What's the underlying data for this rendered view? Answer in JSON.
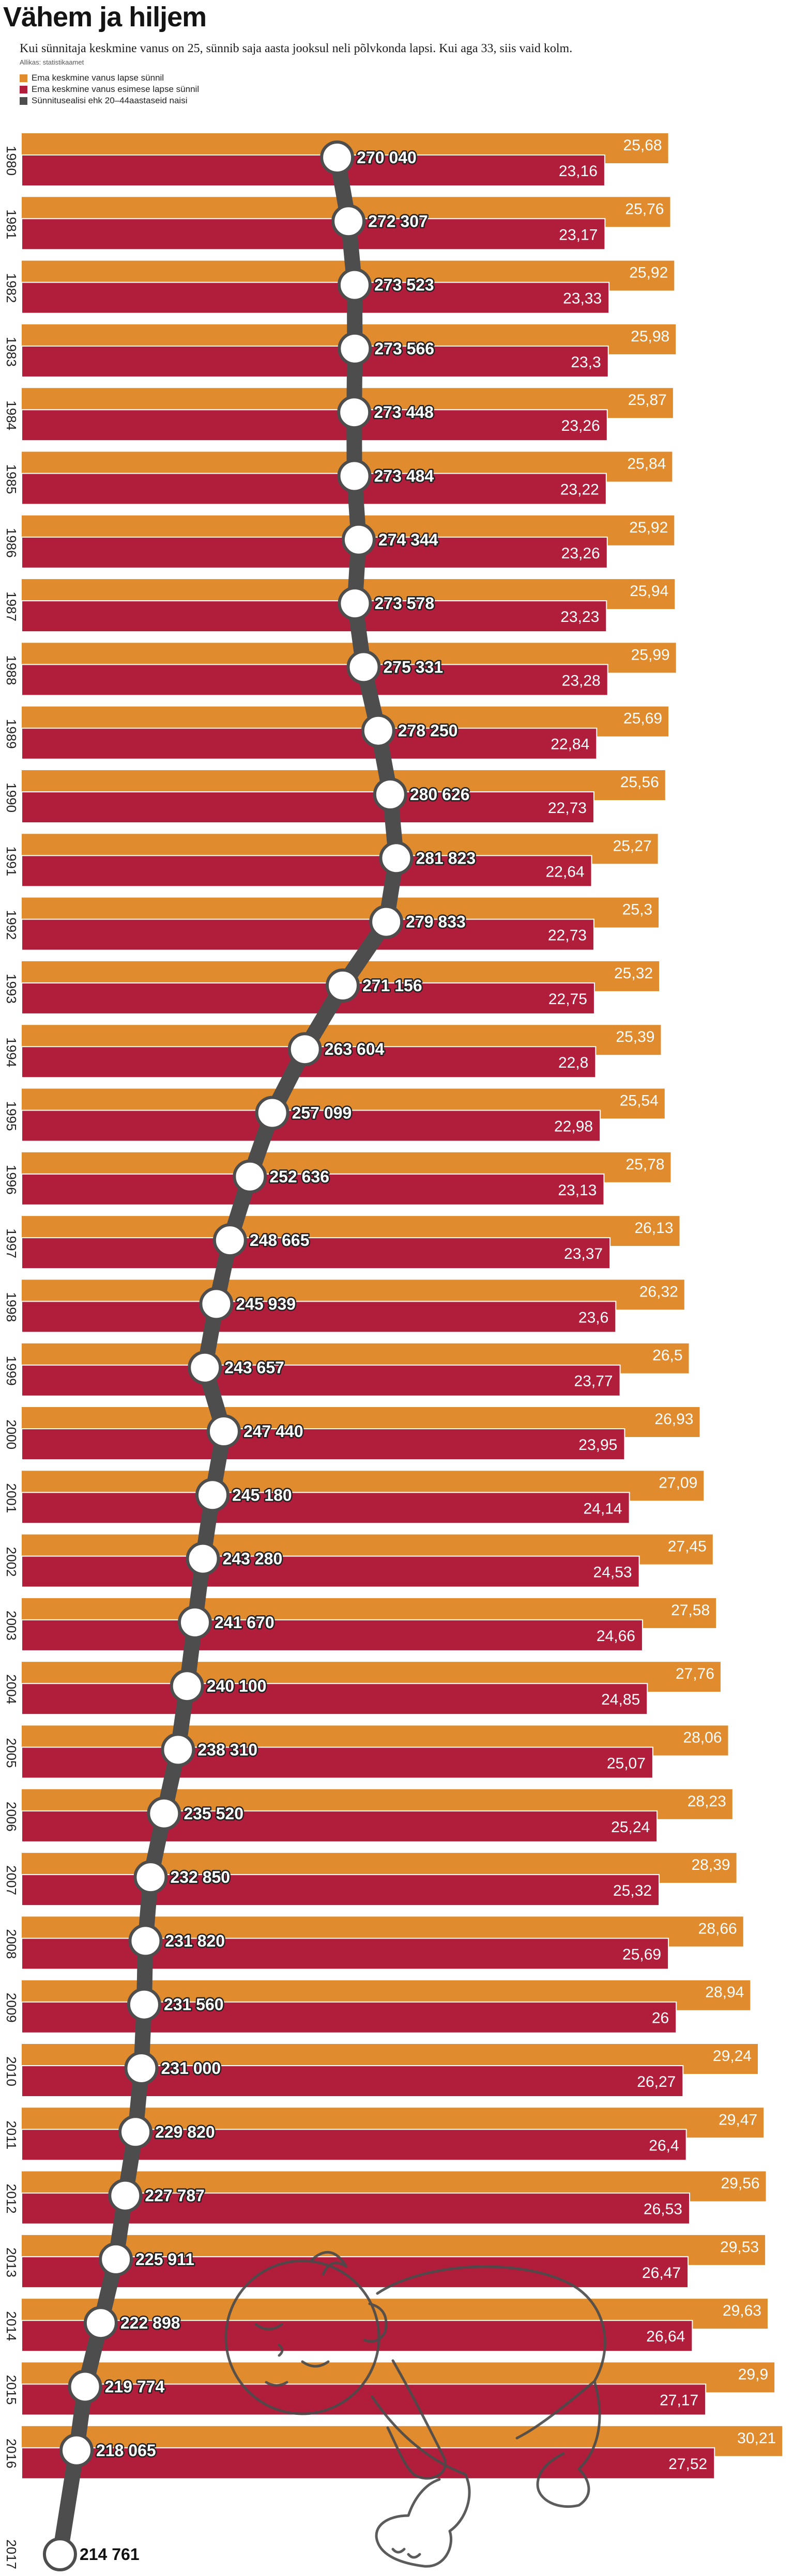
{
  "chart_data": {
    "type": "bar",
    "orientation": "horizontal",
    "title": "Vähem ja hiljem",
    "subtitle": "Kui sünnitaja keskmine vanus on 25, sünnib saja aasta jooksul neli põlvkonda lapsi. Kui aga 33, siis vaid kolm.",
    "source": "Allikas: statistikaamet",
    "legend_position": "top-left",
    "grid": false,
    "categories": [
      "1980",
      "1981",
      "1982",
      "1983",
      "1984",
      "1985",
      "1986",
      "1987",
      "1988",
      "1989",
      "1990",
      "1991",
      "1992",
      "1993",
      "1994",
      "1995",
      "1996",
      "1997",
      "1998",
      "1999",
      "2000",
      "2001",
      "2002",
      "2003",
      "2004",
      "2005",
      "2006",
      "2007",
      "2008",
      "2009",
      "2010",
      "2011",
      "2012",
      "2013",
      "2014",
      "2015",
      "2016",
      "2017"
    ],
    "series": [
      {
        "name": "Ema keskmine vanus lapse sünnil",
        "type": "bar",
        "color": "#e08b2d",
        "values": [
          25.68,
          25.76,
          25.92,
          25.98,
          25.87,
          25.84,
          25.92,
          25.94,
          25.99,
          25.69,
          25.56,
          25.27,
          25.3,
          25.32,
          25.39,
          25.54,
          25.78,
          26.13,
          26.32,
          26.5,
          26.93,
          27.09,
          27.45,
          27.58,
          27.76,
          28.06,
          28.23,
          28.39,
          28.66,
          28.94,
          29.24,
          29.47,
          29.56,
          29.53,
          29.63,
          29.9,
          30.21,
          null
        ],
        "labels": [
          "25,68",
          "25,76",
          "25,92",
          "25,98",
          "25,87",
          "25,84",
          "25,92",
          "25,94",
          "25,99",
          "25,69",
          "25,56",
          "25,27",
          "25,3",
          "25,32",
          "25,39",
          "25,54",
          "25,78",
          "26,13",
          "26,32",
          "26,5",
          "26,93",
          "27,09",
          "27,45",
          "27,58",
          "27,76",
          "28,06",
          "28,23",
          "28,39",
          "28,66",
          "28,94",
          "29,24",
          "29,47",
          "29,56",
          "29,53",
          "29,63",
          "29,9",
          "30,21",
          null
        ]
      },
      {
        "name": "Ema keskmine vanus esimese lapse sünnil",
        "type": "bar",
        "color": "#b01e3c",
        "values": [
          23.16,
          23.17,
          23.33,
          23.3,
          23.26,
          23.22,
          23.26,
          23.23,
          23.28,
          22.84,
          22.73,
          22.64,
          22.73,
          22.75,
          22.8,
          22.98,
          23.13,
          23.37,
          23.6,
          23.77,
          23.95,
          24.14,
          24.53,
          24.66,
          24.85,
          25.07,
          25.24,
          25.32,
          25.69,
          26,
          26.27,
          26.4,
          26.53,
          26.47,
          26.64,
          27.17,
          27.52,
          null
        ],
        "labels": [
          "23,16",
          "23,17",
          "23,33",
          "23,3",
          "23,26",
          "23,22",
          "23,26",
          "23,23",
          "23,28",
          "22,84",
          "22,73",
          "22,64",
          "22,73",
          "22,75",
          "22,8",
          "22,98",
          "23,13",
          "23,37",
          "23,6",
          "23,77",
          "23,95",
          "24,14",
          "24,53",
          "24,66",
          "24,85",
          "25,07",
          "25,24",
          "25,32",
          "25,69",
          "26",
          "26,27",
          "26,4",
          "26,53",
          "26,47",
          "26,64",
          "27,17",
          "27,52",
          null
        ]
      },
      {
        "name": "Sünnitusealisi ehk 20–44aastaseid naisi",
        "type": "line",
        "color": "#4d4d4d",
        "values": [
          270040,
          272307,
          273523,
          273566,
          273448,
          273484,
          274344,
          273578,
          275331,
          278250,
          280626,
          281823,
          279833,
          271156,
          263604,
          257099,
          252636,
          248665,
          245939,
          243657,
          247440,
          245180,
          243280,
          241670,
          240100,
          238310,
          235520,
          232850,
          231820,
          231560,
          231000,
          229820,
          227787,
          225911,
          222898,
          219774,
          218065,
          214761
        ],
        "labels": [
          "270 040",
          "272 307",
          "273 523",
          "273 566",
          "273 448",
          "273 484",
          "274 344",
          "273 578",
          "275 331",
          "278 250",
          "280 626",
          "281 823",
          "279 833",
          "271 156",
          "263 604",
          "257 099",
          "252 636",
          "248 665",
          "245 939",
          "243 657",
          "247 440",
          "245 180",
          "243 280",
          "241 670",
          "240 100",
          "238 310",
          "235 520",
          "232 850",
          "231 820",
          "231 560",
          "231 000",
          "229 820",
          "227 787",
          "225 911",
          "222 898",
          "219 774",
          "218 065",
          "214 761"
        ]
      }
    ]
  }
}
